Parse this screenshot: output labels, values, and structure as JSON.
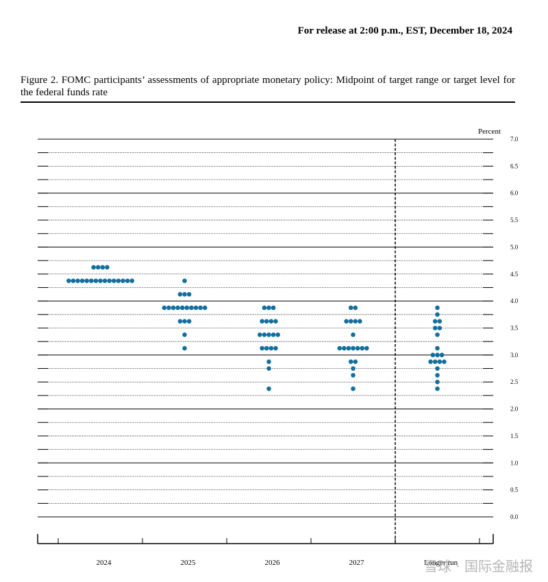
{
  "header": {
    "release": "For release at 2:00 p.m., EST, December 18, 2024"
  },
  "chart_data": {
    "type": "dot",
    "title": "Figure 2.  FOMC participants’ assessments of appropriate monetary policy:  Midpoint of target range or target level for the federal funds rate",
    "y_label": "Percent",
    "color": "#136f9f",
    "ylim": [
      0,
      7
    ],
    "yticks": [
      {
        "value": 0,
        "label": "0.0"
      },
      0.5,
      {
        "value": 1,
        "label": "1.0"
      },
      1.5,
      {
        "value": 2,
        "label": "2.0"
      },
      2.5,
      {
        "value": 3,
        "label": "3.0"
      },
      3.5,
      {
        "value": 4,
        "label": "4.0"
      },
      4.5,
      {
        "value": 5,
        "label": "5.0"
      },
      5.5,
      {
        "value": 6,
        "label": "6.0"
      },
      6.5,
      {
        "value": 7,
        "label": "7.0"
      }
    ],
    "yminor_ticks": [
      0.25,
      0.75,
      1.25,
      1.75,
      2.25,
      2.75,
      3.25,
      3.75,
      4.25,
      4.75,
      5.25,
      5.75,
      6.25,
      6.75
    ],
    "grid": true,
    "categories": [
      "2024",
      "2025",
      "2026",
      "2027",
      "Longer run"
    ],
    "points": [
      [
        {
          "value": 4.625,
          "count": 4
        },
        {
          "value": 4.375,
          "count": 15
        }
      ],
      [
        {
          "value": 4.375,
          "count": 1
        },
        {
          "value": 4.125,
          "count": 3
        },
        {
          "value": 3.875,
          "count": 10
        },
        {
          "value": 3.625,
          "count": 3
        },
        {
          "value": 3.375,
          "count": 1
        },
        {
          "value": 3.125,
          "count": 1
        }
      ],
      [
        {
          "value": 3.875,
          "count": 3
        },
        {
          "value": 3.625,
          "count": 4
        },
        {
          "value": 3.375,
          "count": 5
        },
        {
          "value": 3.125,
          "count": 4
        },
        {
          "value": 2.875,
          "count": 1
        },
        {
          "value": 2.75,
          "count": 1
        },
        {
          "value": 2.375,
          "count": 1
        }
      ],
      [
        {
          "value": 3.875,
          "count": 2
        },
        {
          "value": 3.625,
          "count": 4
        },
        {
          "value": 3.375,
          "count": 1
        },
        {
          "value": 3.125,
          "count": 7
        },
        {
          "value": 2.875,
          "count": 2
        },
        {
          "value": 2.75,
          "count": 1
        },
        {
          "value": 2.625,
          "count": 1
        },
        {
          "value": 2.375,
          "count": 1
        }
      ],
      [
        {
          "value": 3.875,
          "count": 1
        },
        {
          "value": 3.75,
          "count": 1
        },
        {
          "value": 3.625,
          "count": 2
        },
        {
          "value": 3.5,
          "count": 2
        },
        {
          "value": 3.375,
          "count": 1
        },
        {
          "value": 3.125,
          "count": 1
        },
        {
          "value": 3.0,
          "count": 3
        },
        {
          "value": 2.875,
          "count": 4
        },
        {
          "value": 2.75,
          "count": 1
        },
        {
          "value": 2.625,
          "count": 1
        },
        {
          "value": 2.5,
          "count": 1
        },
        {
          "value": 2.375,
          "count": 1
        }
      ]
    ]
  },
  "watermark": "雪球 · 国际金融报"
}
